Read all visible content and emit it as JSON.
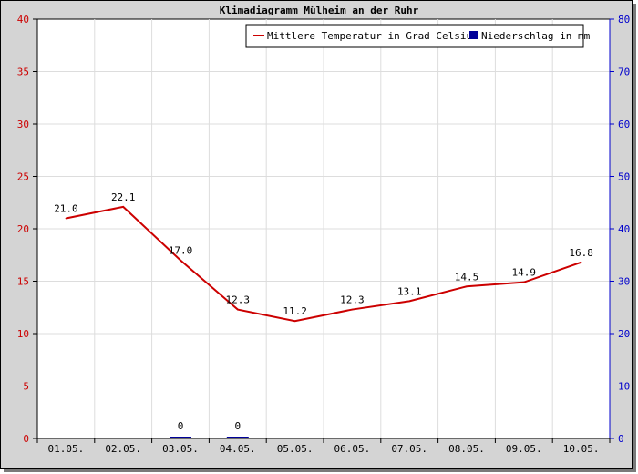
{
  "chart_data": {
    "type": "line",
    "title": "Klimadiagramm Mülheim an der Ruhr",
    "categories": [
      "01.05.",
      "02.05.",
      "03.05.",
      "04.05.",
      "05.05.",
      "06.05.",
      "07.05.",
      "08.05.",
      "09.05.",
      "10.05."
    ],
    "series": [
      {
        "name": "Mittlere Temperatur in Grad Celsius",
        "type": "line",
        "axis": "left",
        "color": "#cc0000",
        "values": [
          21.0,
          22.1,
          17.0,
          12.3,
          11.2,
          12.3,
          13.1,
          14.5,
          14.9,
          16.8
        ],
        "labels": [
          "21.0",
          "22.1",
          "17.0",
          "12.3",
          "11.2",
          "12.3",
          "13.1",
          "14.5",
          "14.9",
          "16.8"
        ]
      },
      {
        "name": "Niederschlag in mm",
        "type": "bar",
        "axis": "right",
        "color": "#000099",
        "values": [
          null,
          null,
          0,
          0,
          null,
          null,
          null,
          null,
          null,
          null
        ],
        "labels": [
          null,
          null,
          "0",
          "0",
          null,
          null,
          null,
          null,
          null,
          null
        ]
      }
    ],
    "y_left": {
      "min": 0,
      "max": 40,
      "ticks": [
        "0",
        "5",
        "10",
        "15",
        "20",
        "25",
        "30",
        "35",
        "40"
      ],
      "color": "#cc0000"
    },
    "y_right": {
      "min": 0,
      "max": 80,
      "ticks": [
        "0",
        "10",
        "20",
        "30",
        "40",
        "50",
        "60",
        "70",
        "80"
      ],
      "color": "#0000cc"
    },
    "grid": true,
    "legend_position": "top-right"
  }
}
